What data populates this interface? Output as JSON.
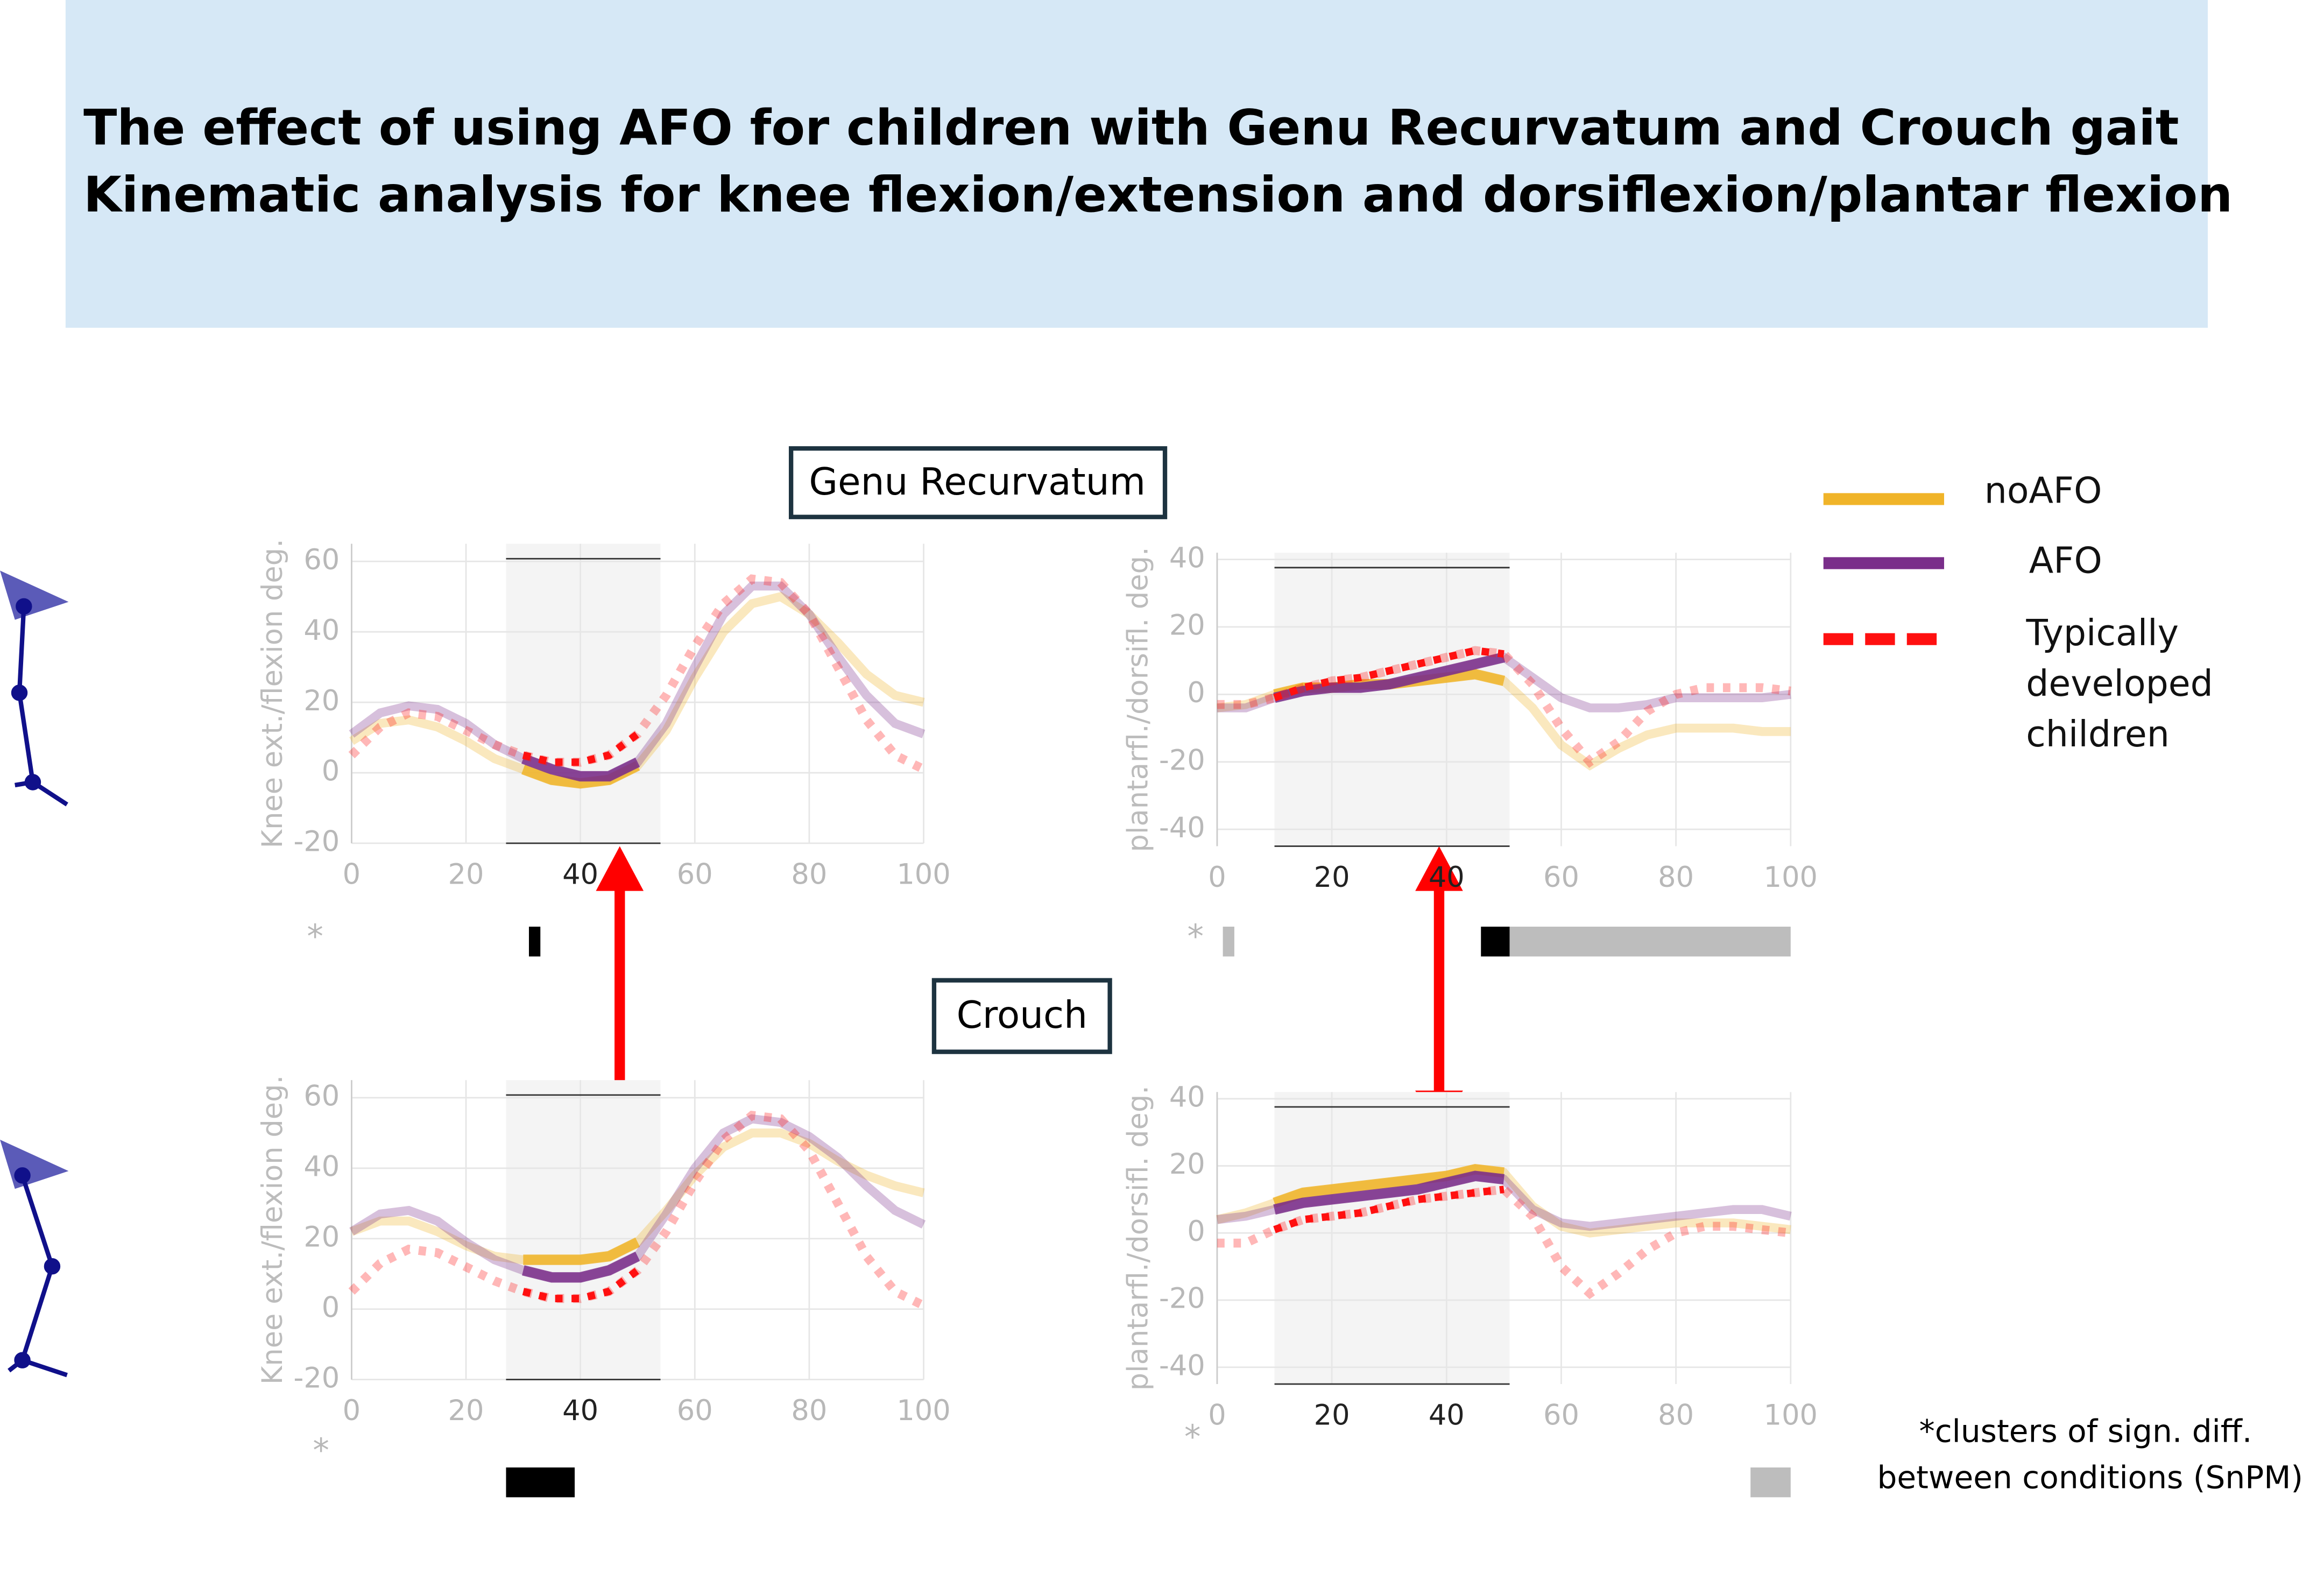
{
  "header": {
    "title_lines": [
      "The effect of using AFO for children with Genu Recurvatum and Crouch gait",
      "Kinematic analysis for knee flexion/extension and dorsiflexion/plantar flexion"
    ]
  },
  "groups": [
    "Genu Recurvatum",
    "Crouch"
  ],
  "footnote": [
    "*clusters of sign. diff.",
    "between conditions (SnPM)"
  ],
  "chart_data": [
    {
      "type": "line",
      "ylabel": "Knee ext./flexion deg.",
      "annotation": "*",
      "x": [
        0,
        5,
        10,
        15,
        20,
        25,
        30,
        35,
        40,
        45,
        50,
        55,
        60,
        65,
        70,
        75,
        80,
        85,
        90,
        95,
        100
      ],
      "series": [
        {
          "name": "noAFO",
          "color": "#f0b429",
          "values": [
            9,
            14,
            15,
            13,
            9,
            4,
            1,
            -2,
            -3,
            -2,
            2,
            12,
            27,
            40,
            48,
            50,
            45,
            37,
            28,
            22,
            20
          ]
        },
        {
          "name": "AFO",
          "color": "#7a2e8a",
          "values": [
            11,
            17,
            19,
            18,
            14,
            8,
            4,
            1,
            -1,
            -1,
            3,
            14,
            30,
            45,
            53,
            53,
            45,
            33,
            22,
            14,
            11
          ]
        },
        {
          "name": "Typically developed children",
          "color": "#ff1010",
          "dashed": true,
          "values": [
            5,
            13,
            17,
            16,
            12,
            8,
            5,
            3,
            3,
            5,
            11,
            22,
            36,
            48,
            55,
            54,
            45,
            30,
            15,
            5,
            1
          ]
        }
      ],
      "highlight": [
        27,
        54
      ],
      "clusters": [
        {
          "range": [
            31,
            33
          ],
          "color": "#000000"
        }
      ],
      "xlim": [
        0,
        100
      ],
      "xticks": [
        0,
        20,
        40,
        60,
        80,
        100
      ],
      "ylim": [
        -20,
        65
      ],
      "yticks": [
        -20,
        0,
        20,
        40,
        60
      ],
      "grid": true
    },
    {
      "type": "line",
      "ylabel": "plantarfl./dorsifl. deg.",
      "annotation": "*",
      "x": [
        0,
        5,
        10,
        15,
        20,
        25,
        30,
        35,
        40,
        45,
        50,
        55,
        60,
        65,
        70,
        75,
        80,
        85,
        90,
        95,
        100
      ],
      "series": [
        {
          "name": "noAFO",
          "color": "#f0b429",
          "values": [
            -4,
            -3,
            0,
            2,
            2,
            3,
            3,
            4,
            5,
            6,
            4,
            -4,
            -15,
            -21,
            -16,
            -12,
            -10,
            -10,
            -10,
            -11,
            -11
          ]
        },
        {
          "name": "AFO",
          "color": "#7a2e8a",
          "values": [
            -4,
            -4,
            -1,
            1,
            2,
            2,
            3,
            5,
            7,
            9,
            11,
            5,
            -1,
            -4,
            -4,
            -3,
            -1,
            -1,
            -1,
            -1,
            0
          ]
        },
        {
          "name": "Typically developed children",
          "color": "#ff1010",
          "dashed": true,
          "values": [
            -3,
            -3,
            -1,
            2,
            4,
            5,
            7,
            9,
            11,
            13,
            12,
            3,
            -10,
            -20,
            -14,
            -5,
            0,
            2,
            2,
            2,
            1
          ]
        }
      ],
      "highlight": [
        10,
        51
      ],
      "clusters": [
        {
          "range": [
            1,
            3
          ],
          "color": "#bdbdbd"
        },
        {
          "range": [
            46,
            51
          ],
          "color": "#000000"
        },
        {
          "range": [
            51,
            100
          ],
          "color": "#bdbdbd"
        }
      ],
      "xlim": [
        0,
        100
      ],
      "xticks": [
        0,
        20,
        40,
        60,
        80,
        100
      ],
      "ylim": [
        -45,
        42
      ],
      "yticks": [
        -40,
        -20,
        0,
        20,
        40
      ],
      "grid": true
    },
    {
      "type": "line",
      "ylabel": "Knee ext./flexion deg.",
      "annotation": "*",
      "x": [
        0,
        5,
        10,
        15,
        20,
        25,
        30,
        35,
        40,
        45,
        50,
        55,
        60,
        65,
        70,
        75,
        80,
        85,
        90,
        95,
        100
      ],
      "series": [
        {
          "name": "noAFO",
          "color": "#f0b429",
          "values": [
            22,
            25,
            25,
            22,
            18,
            15,
            14,
            14,
            14,
            15,
            19,
            28,
            38,
            46,
            50,
            50,
            47,
            42,
            38,
            35,
            33
          ]
        },
        {
          "name": "AFO",
          "color": "#7a2e8a",
          "values": [
            22,
            27,
            28,
            25,
            19,
            14,
            11,
            9,
            9,
            11,
            15,
            27,
            40,
            50,
            54,
            53,
            49,
            43,
            35,
            28,
            24
          ]
        },
        {
          "name": "Typically developed children",
          "color": "#ff1010",
          "dashed": true,
          "values": [
            5,
            13,
            17,
            16,
            12,
            8,
            5,
            3,
            3,
            5,
            11,
            22,
            36,
            48,
            55,
            54,
            45,
            30,
            15,
            5,
            1
          ]
        }
      ],
      "highlight": [
        27,
        54
      ],
      "clusters": [
        {
          "range": [
            27,
            39
          ],
          "color": "#000000"
        }
      ],
      "xlim": [
        0,
        100
      ],
      "xticks": [
        0,
        20,
        40,
        60,
        80,
        100
      ],
      "ylim": [
        -20,
        65
      ],
      "yticks": [
        -20,
        0,
        20,
        40,
        60
      ],
      "grid": true
    },
    {
      "type": "line",
      "ylabel": "plantarfl./dorsifl. deg.",
      "annotation": "*",
      "x": [
        0,
        5,
        10,
        15,
        20,
        25,
        30,
        35,
        40,
        45,
        50,
        55,
        60,
        65,
        70,
        75,
        80,
        85,
        90,
        95,
        100
      ],
      "series": [
        {
          "name": "noAFO",
          "color": "#f0b429",
          "values": [
            4,
            6,
            9,
            12,
            13,
            14,
            15,
            16,
            17,
            19,
            18,
            8,
            2,
            0,
            1,
            2,
            3,
            3,
            3,
            2,
            1
          ]
        },
        {
          "name": "AFO",
          "color": "#7a2e8a",
          "values": [
            4,
            5,
            7,
            9,
            10,
            11,
            12,
            13,
            15,
            17,
            16,
            7,
            3,
            2,
            3,
            4,
            5,
            6,
            7,
            7,
            5
          ]
        },
        {
          "name": "Typically developed children",
          "color": "#ff1010",
          "dashed": true,
          "values": [
            -3,
            -3,
            1,
            4,
            5,
            6,
            8,
            10,
            11,
            12,
            13,
            5,
            -10,
            -18,
            -12,
            -5,
            0,
            2,
            2,
            1,
            0
          ]
        }
      ],
      "highlight": [
        10,
        51
      ],
      "clusters": [
        {
          "range": [
            93,
            100
          ],
          "color": "#bdbdbd"
        }
      ],
      "xlim": [
        0,
        100
      ],
      "xticks": [
        0,
        20,
        40,
        60,
        80,
        100
      ],
      "ylim": [
        -45,
        42
      ],
      "yticks": [
        -40,
        -20,
        0,
        20,
        40
      ],
      "grid": true
    }
  ]
}
